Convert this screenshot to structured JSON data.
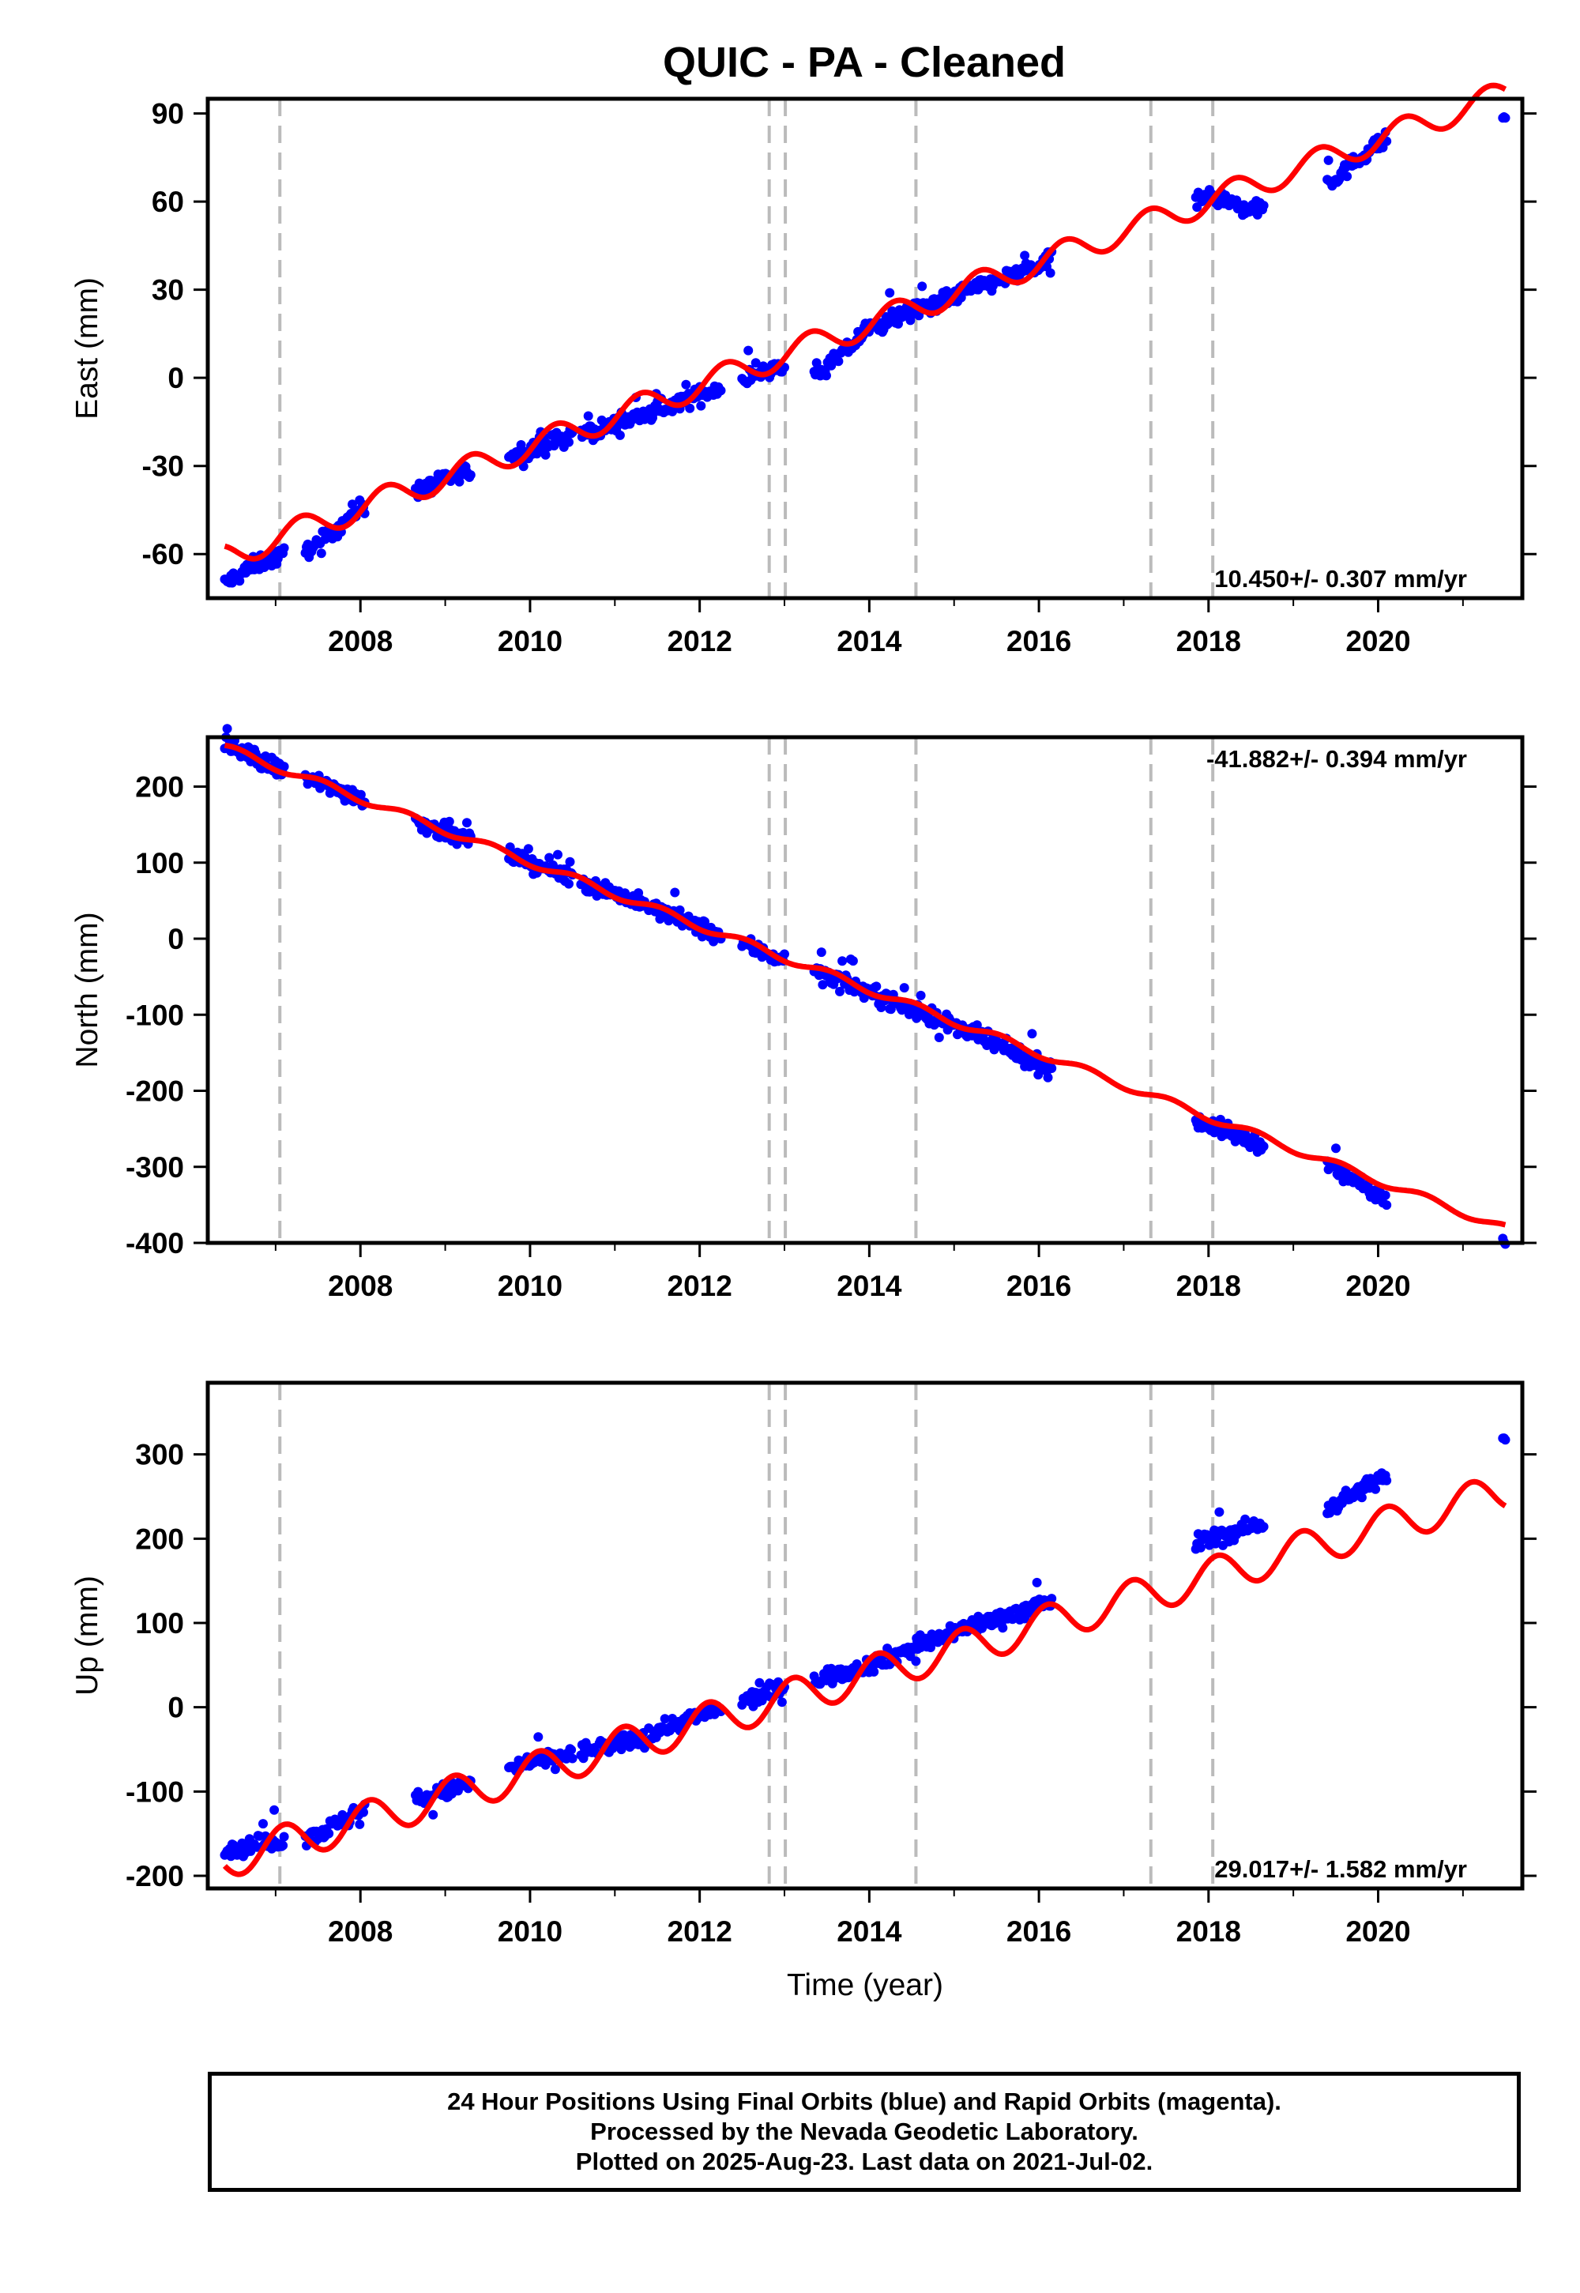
{
  "title": "QUIC  - PA - Cleaned",
  "colors": {
    "final_orbits": "#0000ff",
    "model_fit": "#ff0000",
    "event_lines": "#bbbbbb",
    "frame": "#000000"
  },
  "chart_data": [
    {
      "type": "scatter",
      "component": "east",
      "ylabel": "East (mm)",
      "xlabel": "",
      "ylim": [
        -75,
        95
      ],
      "yticks": [
        -60,
        -30,
        0,
        30,
        60,
        90
      ],
      "xlim": [
        2006.2,
        2021.7
      ],
      "xticks": [
        2008,
        2010,
        2012,
        2014,
        2016,
        2018,
        2020
      ],
      "grid": false,
      "rate_text": "10.450+/- 0.307 mm/yr",
      "rate_position": "bottom-right",
      "event_lines": [
        2007.05,
        2012.82,
        2013.01,
        2014.55,
        2017.32,
        2018.05
      ],
      "series": [
        {
          "marker": "dot",
          "color": "#0000ff",
          "data_ranges": [
            [
              2006.4,
              2007.1
            ],
            [
              2007.35,
              2008.05
            ],
            [
              2008.65,
              2009.3
            ],
            [
              2009.75,
              2010.5
            ],
            [
              2010.6,
              2011.35
            ],
            [
              2011.4,
              2012.25
            ],
            [
              2012.5,
              2013.0
            ],
            [
              2013.35,
              2014.6
            ],
            [
              2014.55,
              2016.15
            ],
            [
              2017.85,
              2018.65
            ],
            [
              2019.4,
              2020.1
            ],
            [
              2021.47,
              2021.5
            ]
          ],
          "values": [
            [
              2006.4,
              -70
            ],
            [
              2006.8,
              -63
            ],
            [
              2007.5,
              -57
            ],
            [
              2008.0,
              -44
            ],
            [
              2009.0,
              -35
            ],
            [
              2010.0,
              -24
            ],
            [
              2011.0,
              -16
            ],
            [
              2012.0,
              -6
            ],
            [
              2012.8,
              3
            ],
            [
              2013.5,
              3
            ],
            [
              2014.0,
              17
            ],
            [
              2015.0,
              28
            ],
            [
              2016.0,
              38
            ],
            [
              2018.0,
              62
            ],
            [
              2018.5,
              57
            ],
            [
              2019.5,
              68
            ],
            [
              2020.0,
              80
            ],
            [
              2021.47,
              89
            ]
          ]
        },
        {
          "line": true,
          "color": "#ff0000",
          "trend": {
            "t0": 2013.0,
            "y0": 8.0,
            "rate": 10.45
          },
          "seasonal": {
            "amplitude": 4.5,
            "phase_year": 0.05
          },
          "range": [
            2006.4,
            2021.5
          ]
        }
      ]
    },
    {
      "type": "scatter",
      "component": "north",
      "ylabel": "North (mm)",
      "xlabel": "",
      "ylim": [
        -400,
        265
      ],
      "yticks": [
        -400,
        -300,
        -200,
        -100,
        0,
        100,
        200
      ],
      "xlim": [
        2006.2,
        2021.7
      ],
      "xticks": [
        2008,
        2010,
        2012,
        2014,
        2016,
        2018,
        2020
      ],
      "grid": false,
      "rate_text": "-41.882+/- 0.394 mm/yr",
      "rate_position": "top-right",
      "event_lines": [
        2007.05,
        2012.82,
        2013.01,
        2014.55,
        2017.32,
        2018.05
      ],
      "series": [
        {
          "marker": "dot",
          "color": "#0000ff",
          "data_ranges": [
            [
              2006.4,
              2007.1
            ],
            [
              2007.35,
              2008.05
            ],
            [
              2008.65,
              2009.3
            ],
            [
              2009.75,
              2010.5
            ],
            [
              2010.6,
              2011.35
            ],
            [
              2011.4,
              2012.25
            ],
            [
              2012.5,
              2013.0
            ],
            [
              2013.35,
              2014.6
            ],
            [
              2014.55,
              2016.15
            ],
            [
              2017.85,
              2018.65
            ],
            [
              2019.4,
              2020.1
            ],
            [
              2021.47,
              2021.5
            ]
          ],
          "values": [
            [
              2006.4,
              255
            ],
            [
              2007.0,
              225
            ],
            [
              2008.0,
              185
            ],
            [
              2009.0,
              140
            ],
            [
              2010.0,
              100
            ],
            [
              2011.0,
              60
            ],
            [
              2012.0,
              15
            ],
            [
              2013.0,
              -28
            ],
            [
              2014.0,
              -70
            ],
            [
              2015.0,
              -115
            ],
            [
              2016.0,
              -165
            ],
            [
              2018.0,
              -245
            ],
            [
              2019.5,
              -305
            ],
            [
              2020.0,
              -335
            ],
            [
              2021.47,
              -390
            ]
          ]
        },
        {
          "line": true,
          "color": "#ff0000",
          "trend": {
            "t0": 2013.0,
            "y0": -25.0,
            "rate": -41.882
          },
          "seasonal": {
            "amplitude": 5.0,
            "phase_year": 0.3
          },
          "range": [
            2006.4,
            2021.5
          ]
        }
      ]
    },
    {
      "type": "scatter",
      "component": "up",
      "ylabel": "Up (mm)",
      "xlabel": "Time (year)",
      "ylim": [
        -215,
        385
      ],
      "yticks": [
        -200,
        -100,
        0,
        100,
        200,
        300
      ],
      "xlim": [
        2006.2,
        2021.7
      ],
      "xticks": [
        2008,
        2010,
        2012,
        2014,
        2016,
        2018,
        2020
      ],
      "grid": false,
      "rate_text": "29.017+/- 1.582 mm/yr",
      "rate_position": "bottom-right",
      "event_lines": [
        2007.05,
        2012.82,
        2013.01,
        2014.55,
        2017.32,
        2018.05
      ],
      "series": [
        {
          "marker": "dot",
          "color": "#0000ff",
          "data_ranges": [
            [
              2006.4,
              2007.1
            ],
            [
              2007.35,
              2008.05
            ],
            [
              2008.65,
              2009.3
            ],
            [
              2009.75,
              2010.5
            ],
            [
              2010.6,
              2011.35
            ],
            [
              2011.4,
              2012.25
            ],
            [
              2012.5,
              2013.0
            ],
            [
              2013.35,
              2014.6
            ],
            [
              2014.55,
              2016.15
            ],
            [
              2017.85,
              2018.65
            ],
            [
              2019.4,
              2020.1
            ],
            [
              2021.47,
              2021.5
            ]
          ],
          "values": [
            [
              2006.4,
              -170
            ],
            [
              2007.5,
              -150
            ],
            [
              2008.0,
              -125
            ],
            [
              2009.0,
              -100
            ],
            [
              2010.0,
              -65
            ],
            [
              2011.0,
              -45
            ],
            [
              2012.0,
              -10
            ],
            [
              2012.9,
              20
            ],
            [
              2014.0,
              50
            ],
            [
              2015.0,
              90
            ],
            [
              2016.0,
              120
            ],
            [
              2018.0,
              200
            ],
            [
              2019.5,
              240
            ],
            [
              2020.0,
              270
            ],
            [
              2021.47,
              315
            ]
          ]
        },
        {
          "line": true,
          "color": "#ff0000",
          "trend": {
            "t0": 2013.0,
            "y0": 10.0,
            "rate": 29.017
          },
          "seasonal": {
            "amplitude": 22.0,
            "phase_year": 0.85
          },
          "range": [
            2006.4,
            2021.5
          ]
        }
      ]
    }
  ],
  "footer": {
    "line1": "24 Hour Positions Using Final Orbits (blue) and Rapid Orbits (magenta).",
    "line2": "Processed by the Nevada Geodetic Laboratory.",
    "line3": "Plotted on 2025-Aug-23. Last data on 2021-Jul-02."
  }
}
